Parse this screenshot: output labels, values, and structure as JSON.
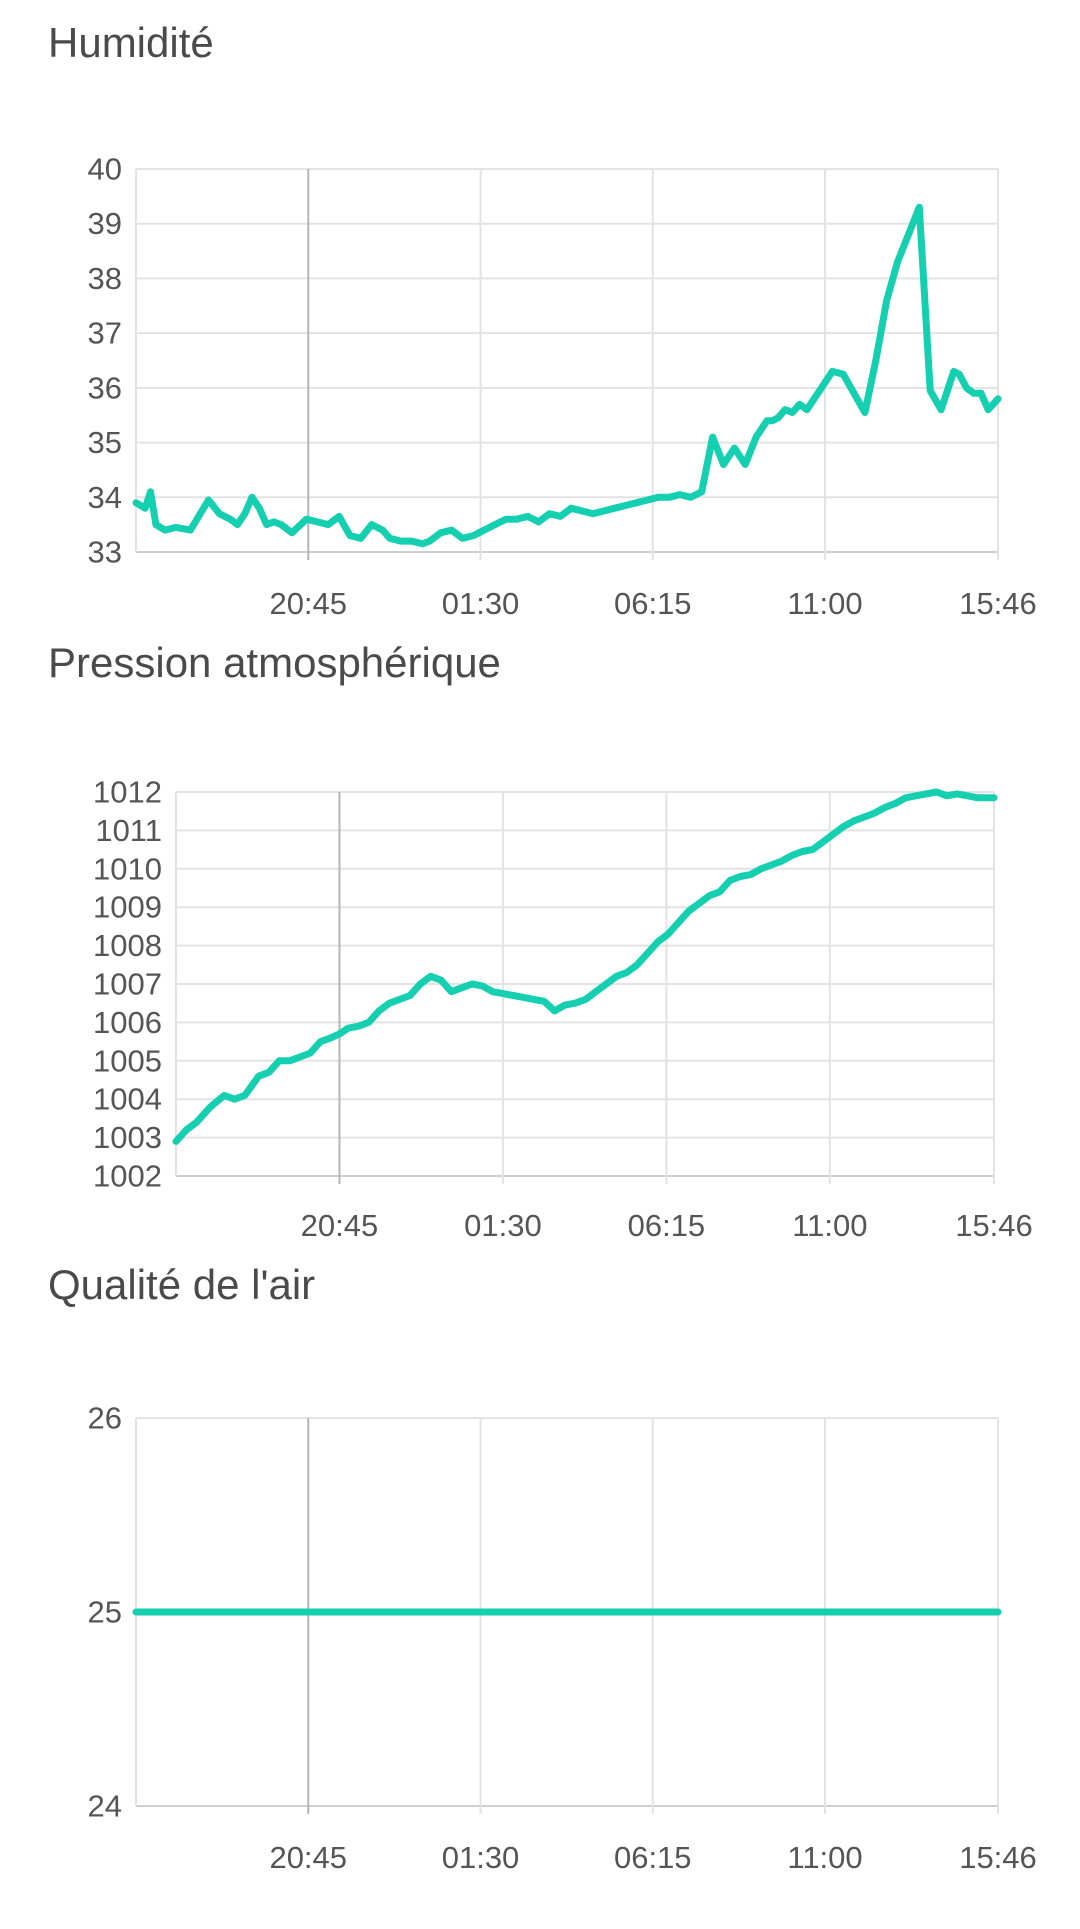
{
  "colors": {
    "line": "#14cfb0",
    "grid": "#e3e3e3",
    "axis": "#cfcfcf",
    "dayline": "#b5b5b5",
    "text": "#555555"
  },
  "chart_data": [
    {
      "type": "line",
      "title": "Humidité",
      "x_tick_labels": [
        "20:45",
        "01:30",
        "06:15",
        "11:00",
        "15:46"
      ],
      "x_tick_hours": [
        4.75,
        9.5,
        14.25,
        19.0,
        23.77
      ],
      "x_range_hours": [
        0,
        23.77
      ],
      "ylim": [
        33,
        40
      ],
      "yticks": [
        33,
        34,
        35,
        36,
        37,
        38,
        39,
        40
      ],
      "grid": true,
      "series": [
        {
          "x_hours": [
            0,
            0.25,
            0.4,
            0.55,
            0.8,
            1.1,
            1.5,
            2.0,
            2.3,
            2.6,
            2.8,
            3.0,
            3.2,
            3.4,
            3.6,
            3.8,
            4.0,
            4.3,
            4.7,
            5.0,
            5.3,
            5.6,
            5.9,
            6.2,
            6.5,
            6.8,
            7.0,
            7.3,
            7.6,
            7.9,
            8.1,
            8.4,
            8.7,
            9.0,
            9.3,
            9.6,
            9.9,
            10.2,
            10.5,
            10.8,
            11.1,
            11.4,
            11.7,
            12.0,
            12.3,
            12.6,
            12.9,
            13.2,
            13.5,
            13.8,
            14.1,
            14.4,
            14.7,
            15.0,
            15.3,
            15.6,
            15.9,
            16.2,
            16.5,
            16.8,
            17.1,
            17.4,
            17.55,
            17.7,
            17.9,
            18.1,
            18.3,
            18.5,
            18.7,
            18.9,
            19.2,
            19.5,
            19.8,
            20.1,
            20.4,
            20.7,
            21.0,
            21.3,
            21.6,
            21.9,
            22.2,
            22.4,
            22.55,
            22.7,
            22.9,
            23.1,
            23.3,
            23.5,
            23.77
          ],
          "values": [
            33.9,
            33.8,
            34.1,
            33.5,
            33.4,
            33.45,
            33.4,
            33.95,
            33.7,
            33.6,
            33.5,
            33.7,
            34.0,
            33.8,
            33.5,
            33.55,
            33.5,
            33.35,
            33.6,
            33.55,
            33.5,
            33.65,
            33.3,
            33.25,
            33.5,
            33.4,
            33.25,
            33.2,
            33.2,
            33.15,
            33.2,
            33.35,
            33.4,
            33.25,
            33.3,
            33.4,
            33.5,
            33.6,
            33.6,
            33.65,
            33.55,
            33.7,
            33.65,
            33.8,
            33.75,
            33.7,
            33.75,
            33.8,
            33.85,
            33.9,
            33.95,
            34.0,
            34.0,
            34.05,
            34.0,
            34.1,
            35.1,
            34.6,
            34.9,
            34.6,
            35.1,
            35.4,
            35.4,
            35.45,
            35.6,
            35.55,
            35.7,
            35.6,
            35.8,
            36.0,
            36.3,
            36.25,
            35.9,
            35.55,
            36.5,
            37.6,
            38.3,
            38.8,
            39.3,
            35.95,
            35.6,
            36.0,
            36.3,
            36.25,
            36.0,
            35.9,
            35.9,
            35.6,
            35.8
          ],
          "note": ""
        }
      ]
    },
    {
      "type": "line",
      "title": "Pression atmosphérique",
      "x_tick_labels": [
        "20:45",
        "01:30",
        "06:15",
        "11:00",
        "15:46"
      ],
      "x_tick_hours": [
        4.75,
        9.5,
        14.25,
        19.0,
        23.77
      ],
      "x_range_hours": [
        0,
        23.77
      ],
      "ylim": [
        1002,
        1012
      ],
      "yticks": [
        1002,
        1003,
        1004,
        1005,
        1006,
        1007,
        1008,
        1009,
        1010,
        1011,
        1012
      ],
      "grid": true,
      "series": [
        {
          "x_hours": [
            0,
            0.3,
            0.6,
            1.0,
            1.4,
            1.7,
            2.0,
            2.4,
            2.7,
            3.0,
            3.3,
            3.6,
            3.9,
            4.2,
            4.5,
            4.75,
            5.0,
            5.3,
            5.6,
            5.9,
            6.2,
            6.5,
            6.8,
            7.1,
            7.4,
            7.7,
            8.0,
            8.3,
            8.6,
            8.9,
            9.2,
            9.5,
            9.8,
            10.1,
            10.4,
            10.7,
            11.0,
            11.3,
            11.6,
            11.9,
            12.2,
            12.5,
            12.8,
            13.1,
            13.4,
            13.7,
            14.0,
            14.3,
            14.6,
            14.9,
            15.2,
            15.5,
            15.8,
            16.1,
            16.4,
            16.7,
            17.0,
            17.3,
            17.6,
            17.9,
            18.2,
            18.5,
            18.8,
            19.1,
            19.4,
            19.7,
            20.0,
            20.3,
            20.6,
            20.9,
            21.2,
            21.5,
            21.8,
            22.1,
            22.4,
            22.7,
            23.0,
            23.3,
            23.77
          ],
          "values": [
            1002.9,
            1003.2,
            1003.4,
            1003.8,
            1004.1,
            1004.0,
            1004.1,
            1004.6,
            1004.7,
            1005.0,
            1005.0,
            1005.1,
            1005.2,
            1005.5,
            1005.6,
            1005.7,
            1005.85,
            1005.9,
            1006.0,
            1006.3,
            1006.5,
            1006.6,
            1006.7,
            1007.0,
            1007.2,
            1007.1,
            1006.8,
            1006.9,
            1007.0,
            1006.95,
            1006.8,
            1006.75,
            1006.7,
            1006.65,
            1006.6,
            1006.55,
            1006.3,
            1006.45,
            1006.5,
            1006.6,
            1006.8,
            1007.0,
            1007.2,
            1007.3,
            1007.5,
            1007.8,
            1008.1,
            1008.3,
            1008.6,
            1008.9,
            1009.1,
            1009.3,
            1009.4,
            1009.7,
            1009.8,
            1009.85,
            1010.0,
            1010.1,
            1010.2,
            1010.35,
            1010.45,
            1010.5,
            1010.7,
            1010.9,
            1011.1,
            1011.25,
            1011.35,
            1011.45,
            1011.6,
            1011.7,
            1011.85,
            1011.9,
            1011.95,
            1012.0,
            1011.9,
            1011.95,
            1011.9,
            1011.85,
            1011.85
          ],
          "note": ""
        }
      ]
    },
    {
      "type": "line",
      "title": "Qualité de l'air",
      "x_tick_labels": [
        "20:45",
        "01:30",
        "06:15",
        "11:00",
        "15:46"
      ],
      "x_tick_hours": [
        4.75,
        9.5,
        14.25,
        19.0,
        23.77
      ],
      "x_range_hours": [
        0,
        23.77
      ],
      "ylim": [
        24,
        26
      ],
      "yticks": [
        24,
        25,
        26
      ],
      "grid": true,
      "series": [
        {
          "x_hours": [
            0,
            23.77
          ],
          "values": [
            25,
            25
          ],
          "note": ""
        }
      ]
    }
  ]
}
